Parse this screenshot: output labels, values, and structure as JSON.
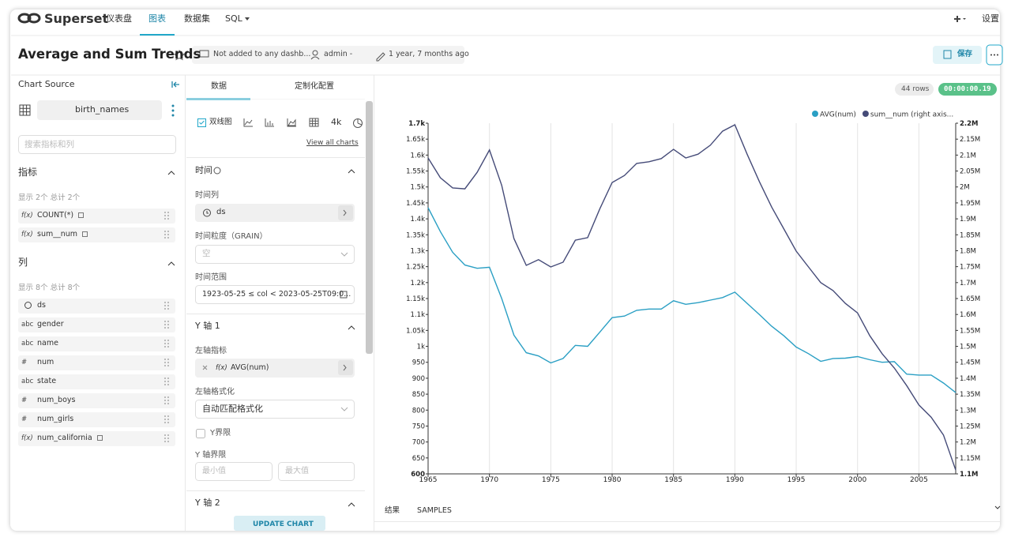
{
  "nav": {
    "brand": "Superset",
    "items": [
      "仪表盘",
      "图表",
      "数据集",
      "SQL"
    ],
    "active": 1,
    "settings": "设置"
  },
  "header": {
    "title": "Average and Sum Trends",
    "dashboards": "Not added to any dashb...",
    "owner": "admin -",
    "modified": "1 year, 7 months ago",
    "save": "保存"
  },
  "datasource": {
    "heading": "Chart Source",
    "dataset": "birth_names",
    "search_placeholder": "搜索指标和列",
    "metrics_heading": "指标",
    "metrics_count": "显示 2个 总计 2个",
    "metrics": [
      {
        "icon": "f(x)",
        "name": "COUNT(*)"
      },
      {
        "icon": "f(x)",
        "name": "sum__num"
      }
    ],
    "columns_heading": "列",
    "columns_count": "显示 8个 总计 8个",
    "columns": [
      {
        "name": "ds"
      },
      {
        "icon": "abc",
        "name": "gender"
      },
      {
        "icon": "abc",
        "name": "name"
      },
      {
        "icon": "#",
        "name": "num"
      },
      {
        "icon": "abc",
        "name": "state"
      },
      {
        "icon": "#",
        "name": "num_boys"
      },
      {
        "icon": "#",
        "name": "num_girls"
      },
      {
        "icon": "f(x)",
        "name": "num_california"
      }
    ]
  },
  "controls": {
    "tabs": [
      "数据",
      "定制化配置"
    ],
    "viz_type": "双线图",
    "viz_more": "4k",
    "view_all": "View all charts",
    "time_section": "时间",
    "time_column_label": "时间列",
    "time_column": "ds",
    "grain_label": "时间粒度（GRAIN）",
    "grain": "空",
    "range_label": "时间范围",
    "range": "1923-05-25 ≤ col < 2023-05-25T09:0...",
    "y1_section": "Y 轴 1",
    "left_metric_label": "左轴指标",
    "left_metric_icon": "f(x)",
    "left_metric": "AVG(num)",
    "left_format_label": "左轴格式化",
    "left_format": "自动匹配格式化",
    "y_bounds_check": "Y界限",
    "y_bounds_label": "Y 轴界限",
    "min_placeholder": "最小值",
    "max_placeholder": "最大值",
    "y2_section": "Y 轴 2",
    "update": "UPDATE CHART"
  },
  "results": {
    "rows": "44 rows",
    "timer": "00:00:00.19",
    "tabs": [
      "结果",
      "SAMPLES"
    ]
  },
  "chart_data": {
    "type": "line",
    "x": [
      1965,
      1966,
      1967,
      1968,
      1969,
      1970,
      1971,
      1972,
      1973,
      1974,
      1975,
      1976,
      1977,
      1978,
      1979,
      1980,
      1981,
      1982,
      1983,
      1984,
      1985,
      1986,
      1987,
      1988,
      1989,
      1990,
      1991,
      1992,
      1993,
      1994,
      1995,
      1996,
      1997,
      1998,
      1999,
      2000,
      2001,
      2002,
      2003,
      2004,
      2005,
      2006,
      2007,
      2008
    ],
    "series": [
      {
        "name": "AVG(num)",
        "color": "#2a9fc4",
        "values": [
          1435,
          1360,
          1295,
          1255,
          1245,
          1248,
          1150,
          1035,
          980,
          970,
          948,
          962,
          1003,
          1000,
          1045,
          1090,
          1095,
          1113,
          1117,
          1117,
          1143,
          1132,
          1137,
          1145,
          1153,
          1170,
          1135,
          1100,
          1063,
          1033,
          998,
          977,
          953,
          962,
          963,
          968,
          958,
          950,
          952,
          913,
          910,
          910,
          885,
          855
        ]
      },
      {
        "name": "sum__num (right axis...",
        "color": "#454b78",
        "axis": "y2",
        "values": [
          2091000,
          2029000,
          1997000,
          1994000,
          2046000,
          2116000,
          2005000,
          1838000,
          1754000,
          1772000,
          1749000,
          1764000,
          1833000,
          1841000,
          1932000,
          2014000,
          2036000,
          2074000,
          2079000,
          2089000,
          2118000,
          2091000,
          2103000,
          2131000,
          2175000,
          2195000,
          2103000,
          2017000,
          1937000,
          1868000,
          1799000,
          1749000,
          1700000,
          1675000,
          1635000,
          1605000,
          1533000,
          1477000,
          1432000,
          1377000,
          1316000,
          1278000,
          1222000,
          1112000
        ]
      }
    ],
    "xlim": [
      1965,
      2008
    ],
    "xticks": [
      1965,
      1970,
      1975,
      1980,
      1985,
      1990,
      1995,
      2000,
      2005
    ],
    "ylim": [
      600,
      1700
    ],
    "yticks": [
      600,
      650,
      700,
      750,
      800,
      850,
      900,
      950,
      {
        "value": 1000,
        "label": "1k"
      },
      {
        "value": 1050,
        "label": "1.05k"
      },
      {
        "value": 1100,
        "label": "1.1k"
      },
      {
        "value": 1150,
        "label": "1.15k"
      },
      {
        "value": 1200,
        "label": "1.2k"
      },
      {
        "value": 1250,
        "label": "1.25k"
      },
      {
        "value": 1300,
        "label": "1.3k"
      },
      {
        "value": 1350,
        "label": "1.35k"
      },
      {
        "value": 1400,
        "label": "1.4k"
      },
      {
        "value": 1450,
        "label": "1.45k"
      },
      {
        "value": 1500,
        "label": "1.5k"
      },
      {
        "value": 1550,
        "label": "1.55k"
      },
      {
        "value": 1600,
        "label": "1.6k"
      },
      {
        "value": 1650,
        "label": "1.65k"
      },
      {
        "value": 1700,
        "label": "1.7k"
      }
    ],
    "y2lim": [
      1100000,
      2200000
    ],
    "y2ticks": [
      {
        "value": 1100000,
        "label": "1.1M"
      },
      {
        "value": 1150000,
        "label": "1.15M"
      },
      {
        "value": 1200000,
        "label": "1.2M"
      },
      {
        "value": 1250000,
        "label": "1.25M"
      },
      {
        "value": 1300000,
        "label": "1.3M"
      },
      {
        "value": 1350000,
        "label": "1.35M"
      },
      {
        "value": 1400000,
        "label": "1.4M"
      },
      {
        "value": 1450000,
        "label": "1.45M"
      },
      {
        "value": 1500000,
        "label": "1.5M"
      },
      {
        "value": 1550000,
        "label": "1.55M"
      },
      {
        "value": 1600000,
        "label": "1.6M"
      },
      {
        "value": 1650000,
        "label": "1.65M"
      },
      {
        "value": 1700000,
        "label": "1.7M"
      },
      {
        "value": 1750000,
        "label": "1.75M"
      },
      {
        "value": 1800000,
        "label": "1.8M"
      },
      {
        "value": 1850000,
        "label": "1.85M"
      },
      {
        "value": 1900000,
        "label": "1.9M"
      },
      {
        "value": 1950000,
        "label": "1.95M"
      },
      {
        "value": 2000000,
        "label": "2M"
      },
      {
        "value": 2050000,
        "label": "2.05M"
      },
      {
        "value": 2100000,
        "label": "2.1M"
      },
      {
        "value": 2150000,
        "label": "2.15M"
      },
      {
        "value": 2200000,
        "label": "2.2M"
      }
    ],
    "grid": "x",
    "legend": "top-right"
  }
}
